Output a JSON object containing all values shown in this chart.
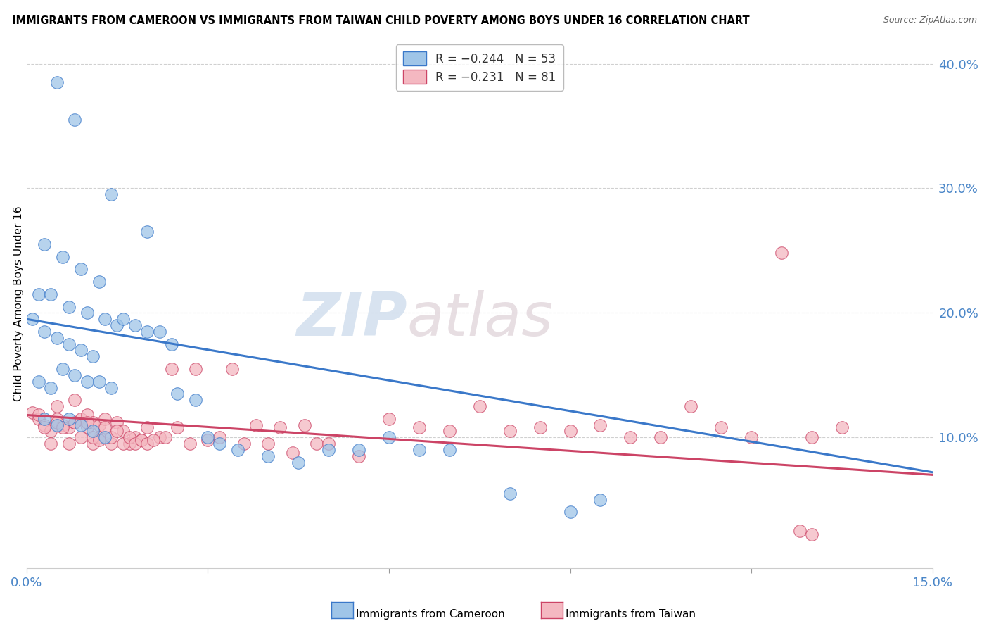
{
  "title": "IMMIGRANTS FROM CAMEROON VS IMMIGRANTS FROM TAIWAN CHILD POVERTY AMONG BOYS UNDER 16 CORRELATION CHART",
  "source": "Source: ZipAtlas.com",
  "ylabel": "Child Poverty Among Boys Under 16",
  "yaxis_ticks": [
    "10.0%",
    "20.0%",
    "30.0%",
    "40.0%"
  ],
  "yaxis_values": [
    0.1,
    0.2,
    0.3,
    0.4
  ],
  "xlim": [
    0.0,
    0.15
  ],
  "ylim": [
    -0.005,
    0.42
  ],
  "color_cameroon": "#9fc5e8",
  "color_taiwan": "#f4b8c1",
  "color_line_cameroon": "#3a78c9",
  "color_line_taiwan": "#cc4466",
  "watermark_zip": "ZIP",
  "watermark_atlas": "atlas",
  "cameroon_x": [
    0.005,
    0.008,
    0.014,
    0.02,
    0.003,
    0.006,
    0.009,
    0.012,
    0.002,
    0.004,
    0.007,
    0.01,
    0.013,
    0.015,
    0.001,
    0.003,
    0.005,
    0.007,
    0.009,
    0.011,
    0.016,
    0.018,
    0.02,
    0.022,
    0.024,
    0.002,
    0.004,
    0.006,
    0.008,
    0.01,
    0.012,
    0.014,
    0.025,
    0.028,
    0.03,
    0.032,
    0.035,
    0.04,
    0.045,
    0.05,
    0.055,
    0.06,
    0.065,
    0.07,
    0.08,
    0.09,
    0.003,
    0.005,
    0.007,
    0.009,
    0.011,
    0.013,
    0.095
  ],
  "cameroon_y": [
    0.385,
    0.355,
    0.295,
    0.265,
    0.255,
    0.245,
    0.235,
    0.225,
    0.215,
    0.215,
    0.205,
    0.2,
    0.195,
    0.19,
    0.195,
    0.185,
    0.18,
    0.175,
    0.17,
    0.165,
    0.195,
    0.19,
    0.185,
    0.185,
    0.175,
    0.145,
    0.14,
    0.155,
    0.15,
    0.145,
    0.145,
    0.14,
    0.135,
    0.13,
    0.1,
    0.095,
    0.09,
    0.085,
    0.08,
    0.09,
    0.09,
    0.1,
    0.09,
    0.09,
    0.055,
    0.04,
    0.115,
    0.11,
    0.115,
    0.11,
    0.105,
    0.1,
    0.05
  ],
  "taiwan_x": [
    0.001,
    0.002,
    0.003,
    0.004,
    0.005,
    0.005,
    0.006,
    0.007,
    0.008,
    0.008,
    0.009,
    0.01,
    0.01,
    0.011,
    0.011,
    0.012,
    0.012,
    0.013,
    0.014,
    0.015,
    0.016,
    0.017,
    0.018,
    0.019,
    0.02,
    0.022,
    0.024,
    0.025,
    0.027,
    0.028,
    0.03,
    0.032,
    0.034,
    0.036,
    0.038,
    0.04,
    0.042,
    0.044,
    0.046,
    0.048,
    0.05,
    0.055,
    0.06,
    0.065,
    0.07,
    0.075,
    0.08,
    0.085,
    0.09,
    0.095,
    0.1,
    0.105,
    0.11,
    0.115,
    0.12,
    0.125,
    0.13,
    0.135,
    0.002,
    0.003,
    0.004,
    0.005,
    0.006,
    0.007,
    0.008,
    0.009,
    0.01,
    0.011,
    0.012,
    0.013,
    0.014,
    0.015,
    0.016,
    0.017,
    0.018,
    0.019,
    0.02,
    0.021,
    0.023,
    0.128,
    0.13
  ],
  "taiwan_y": [
    0.12,
    0.115,
    0.11,
    0.105,
    0.115,
    0.125,
    0.11,
    0.108,
    0.112,
    0.13,
    0.115,
    0.118,
    0.108,
    0.112,
    0.095,
    0.11,
    0.1,
    0.115,
    0.095,
    0.112,
    0.105,
    0.095,
    0.1,
    0.098,
    0.108,
    0.1,
    0.155,
    0.108,
    0.095,
    0.155,
    0.098,
    0.1,
    0.155,
    0.095,
    0.11,
    0.095,
    0.108,
    0.088,
    0.11,
    0.095,
    0.095,
    0.085,
    0.115,
    0.108,
    0.105,
    0.125,
    0.105,
    0.108,
    0.105,
    0.11,
    0.1,
    0.1,
    0.125,
    0.108,
    0.1,
    0.248,
    0.1,
    0.108,
    0.118,
    0.108,
    0.095,
    0.112,
    0.108,
    0.095,
    0.112,
    0.1,
    0.112,
    0.1,
    0.098,
    0.108,
    0.1,
    0.105,
    0.095,
    0.1,
    0.095,
    0.098,
    0.095,
    0.098,
    0.1,
    0.025,
    0.022
  ]
}
